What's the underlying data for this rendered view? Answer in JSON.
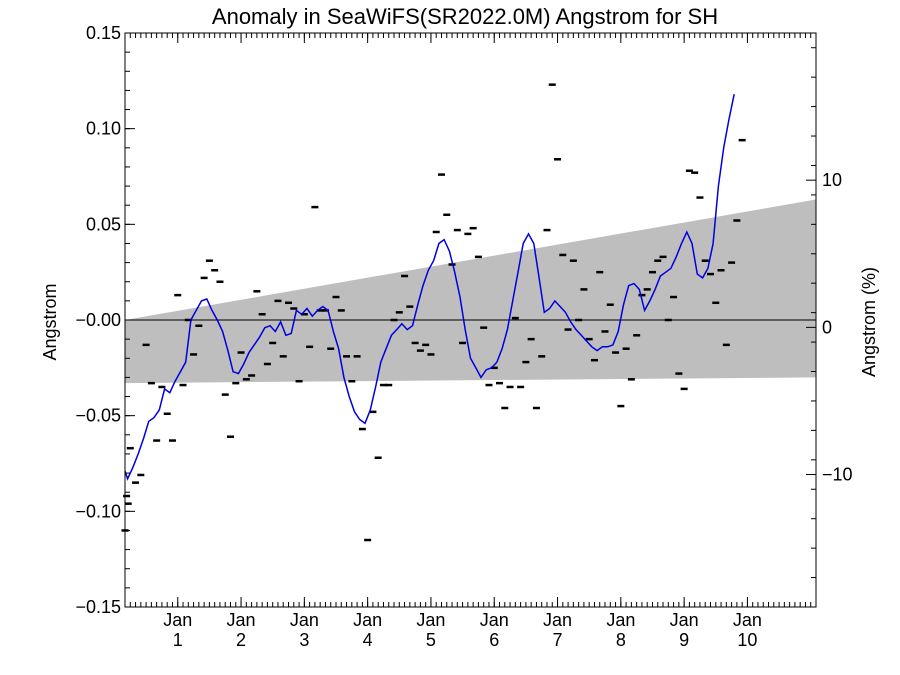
{
  "chart_data": {
    "type": "line",
    "title": "Anomaly in SeaWiFS(SR2022.0M) Angstrom for SH",
    "ylabel": "Angstrom",
    "ylabel_right": "Angstrom (%)",
    "ylim": [
      -0.15,
      0.15
    ],
    "xlim": [
      0,
      131
    ],
    "ylim_right": [
      -19,
      20
    ],
    "y_ticks": [
      {
        "v": -0.15,
        "label": "−0.15"
      },
      {
        "v": -0.1,
        "label": "−0.10"
      },
      {
        "v": -0.05,
        "label": "−0.05"
      },
      {
        "v": 0.0,
        "label": "−0.00"
      },
      {
        "v": 0.05,
        "label": "0.05"
      },
      {
        "v": 0.1,
        "label": "0.10"
      },
      {
        "v": 0.15,
        "label": "0.15"
      }
    ],
    "y_ticks_right": [
      {
        "v": -10,
        "label": "−10"
      },
      {
        "v": 0,
        "label": "0"
      },
      {
        "v": 10,
        "label": "10"
      }
    ],
    "x_ticks": [
      {
        "x": 10,
        "month": "Jan",
        "year": "1"
      },
      {
        "x": 22,
        "month": "Jan",
        "year": "2"
      },
      {
        "x": 34,
        "month": "Jan",
        "year": "3"
      },
      {
        "x": 46,
        "month": "Jan",
        "year": "4"
      },
      {
        "x": 58,
        "month": "Jan",
        "year": "5"
      },
      {
        "x": 70,
        "month": "Jan",
        "year": "6"
      },
      {
        "x": 82,
        "month": "Jan",
        "year": "7"
      },
      {
        "x": 94,
        "month": "Jan",
        "year": "8"
      },
      {
        "x": 106,
        "month": "Jan",
        "year": "9"
      },
      {
        "x": 118,
        "month": "Jan",
        "year": "10"
      }
    ],
    "band": {
      "upper": [
        [
          0,
          0.0
        ],
        [
          131,
          0.063
        ]
      ],
      "lower": [
        [
          0,
          -0.033
        ],
        [
          131,
          -0.03
        ]
      ],
      "color": "#bebebe"
    },
    "zero_line": 0,
    "series": [
      {
        "kind": "monthly",
        "color": "#000000",
        "points": [
          [
            0,
            -0.11
          ],
          [
            0.3,
            -0.092
          ],
          [
            0.6,
            -0.096
          ],
          [
            1,
            -0.067
          ],
          [
            2,
            -0.085
          ],
          [
            3,
            -0.081
          ],
          [
            4,
            -0.013
          ],
          [
            5,
            -0.033
          ],
          [
            6,
            -0.063
          ],
          [
            7,
            -0.035
          ],
          [
            8,
            -0.049
          ],
          [
            9,
            -0.063
          ],
          [
            10,
            0.013
          ],
          [
            11,
            -0.034
          ],
          [
            12,
            0.0
          ],
          [
            13,
            -0.018
          ],
          [
            14,
            -0.003
          ],
          [
            15,
            0.022
          ],
          [
            16,
            0.031
          ],
          [
            17,
            0.026
          ],
          [
            18,
            0.02
          ],
          [
            19,
            -0.039
          ],
          [
            20,
            -0.061
          ],
          [
            21,
            -0.033
          ],
          [
            22,
            -0.017
          ],
          [
            23,
            -0.031
          ],
          [
            24,
            -0.029
          ],
          [
            25,
            0.015
          ],
          [
            26,
            0.003
          ],
          [
            27,
            -0.023
          ],
          [
            28,
            -0.012
          ],
          [
            29,
            0.01
          ],
          [
            30,
            -0.019
          ],
          [
            31,
            0.009
          ],
          [
            32,
            0.006
          ],
          [
            33,
            -0.032
          ],
          [
            34,
            0.003
          ],
          [
            35,
            -0.014
          ],
          [
            36,
            0.059
          ],
          [
            37,
            0.005
          ],
          [
            38,
            0.005
          ],
          [
            39,
            -0.015
          ],
          [
            40,
            0.012
          ],
          [
            41,
            0.005
          ],
          [
            42,
            -0.019
          ],
          [
            43,
            -0.032
          ],
          [
            44,
            -0.019
          ],
          [
            45,
            -0.057
          ],
          [
            46,
            -0.115
          ],
          [
            47,
            -0.048
          ],
          [
            48,
            -0.072
          ],
          [
            49,
            -0.034
          ],
          [
            50,
            -0.034
          ],
          [
            51,
            0.0
          ],
          [
            52,
            0.004
          ],
          [
            53,
            0.023
          ],
          [
            54,
            0.007
          ],
          [
            55,
            -0.012
          ],
          [
            56,
            -0.016
          ],
          [
            57,
            -0.013
          ],
          [
            58,
            -0.018
          ],
          [
            59,
            0.046
          ],
          [
            60,
            0.076
          ],
          [
            61,
            0.055
          ],
          [
            62,
            0.029
          ],
          [
            63,
            0.047
          ],
          [
            64,
            -0.012
          ],
          [
            65,
            0.045
          ],
          [
            66,
            0.048
          ],
          [
            67,
            0.033
          ],
          [
            68,
            -0.004
          ],
          [
            69,
            -0.034
          ],
          [
            70,
            -0.025
          ],
          [
            71,
            -0.033
          ],
          [
            72,
            -0.046
          ],
          [
            73,
            -0.035
          ],
          [
            74,
            0.001
          ],
          [
            75,
            -0.035
          ],
          [
            76,
            -0.022
          ],
          [
            77,
            -0.01
          ],
          [
            78,
            -0.046
          ],
          [
            79,
            -0.019
          ],
          [
            80,
            0.047
          ],
          [
            81,
            0.123
          ],
          [
            82,
            0.084
          ],
          [
            83,
            0.034
          ],
          [
            84,
            -0.005
          ],
          [
            85,
            0.031
          ],
          [
            86,
            0.0
          ],
          [
            87,
            0.016
          ],
          [
            88,
            -0.01
          ],
          [
            89,
            -0.021
          ],
          [
            90,
            0.025
          ],
          [
            91,
            -0.006
          ],
          [
            92,
            0.008
          ],
          [
            93,
            -0.017
          ],
          [
            94,
            -0.045
          ],
          [
            95,
            -0.015
          ],
          [
            96,
            -0.031
          ],
          [
            97,
            -0.008
          ],
          [
            98,
            0.013
          ],
          [
            99,
            0.016
          ],
          [
            100,
            0.025
          ],
          [
            101,
            0.031
          ],
          [
            102,
            0.033
          ],
          [
            103,
            0.0
          ],
          [
            104,
            0.012
          ],
          [
            105,
            -0.028
          ],
          [
            106,
            -0.036
          ],
          [
            107,
            0.078
          ],
          [
            108,
            0.077
          ],
          [
            109,
            0.064
          ],
          [
            110,
            0.031
          ],
          [
            111,
            0.024
          ],
          [
            112,
            0.009
          ],
          [
            113,
            0.026
          ],
          [
            114,
            -0.013
          ],
          [
            115,
            0.03
          ],
          [
            116,
            0.052
          ],
          [
            117,
            0.094
          ]
        ]
      },
      {
        "kind": "smoothed",
        "color": "#0000e0",
        "points": [
          [
            0,
            -0.079
          ],
          [
            0.5,
            -0.083
          ],
          [
            1.5,
            -0.077
          ],
          [
            2.5,
            -0.07
          ],
          [
            3.5,
            -0.062
          ],
          [
            4.5,
            -0.053
          ],
          [
            5.5,
            -0.051
          ],
          [
            6.5,
            -0.047
          ],
          [
            7.5,
            -0.036
          ],
          [
            8.5,
            -0.038
          ],
          [
            9.5,
            -0.032
          ],
          [
            10.5,
            -0.027
          ],
          [
            11.5,
            -0.022
          ],
          [
            12.5,
            0.0
          ],
          [
            13.5,
            0.005
          ],
          [
            14.5,
            0.01
          ],
          [
            15.5,
            0.011
          ],
          [
            16.5,
            0.005
          ],
          [
            17.5,
            0.0
          ],
          [
            18.5,
            -0.006
          ],
          [
            19.5,
            -0.016
          ],
          [
            20.5,
            -0.027
          ],
          [
            21.5,
            -0.028
          ],
          [
            22.5,
            -0.023
          ],
          [
            23.5,
            -0.017
          ],
          [
            24.5,
            -0.013
          ],
          [
            25.5,
            -0.009
          ],
          [
            26.5,
            -0.004
          ],
          [
            27.5,
            -0.003
          ],
          [
            28.5,
            -0.006
          ],
          [
            29.5,
            -0.001
          ],
          [
            30.5,
            -0.008
          ],
          [
            31.5,
            -0.007
          ],
          [
            32.5,
            0.005
          ],
          [
            33.5,
            0.003
          ],
          [
            34.5,
            0.006
          ],
          [
            35.5,
            0.002
          ],
          [
            36.5,
            0.005
          ],
          [
            37.5,
            0.007
          ],
          [
            38.5,
            0.005
          ],
          [
            39.5,
            -0.006
          ],
          [
            40.5,
            -0.015
          ],
          [
            41.5,
            -0.03
          ],
          [
            42.5,
            -0.04
          ],
          [
            43.5,
            -0.048
          ],
          [
            44.5,
            -0.052
          ],
          [
            45.5,
            -0.054
          ],
          [
            46.5,
            -0.047
          ],
          [
            47.5,
            -0.035
          ],
          [
            48.5,
            -0.022
          ],
          [
            49.5,
            -0.015
          ],
          [
            50.5,
            -0.008
          ],
          [
            51.5,
            -0.005
          ],
          [
            52.5,
            -0.002
          ],
          [
            53.5,
            -0.005
          ],
          [
            54.5,
            -0.003
          ],
          [
            55.5,
            0.008
          ],
          [
            56.5,
            0.018
          ],
          [
            57.5,
            0.026
          ],
          [
            58.5,
            0.031
          ],
          [
            59.5,
            0.04
          ],
          [
            60.5,
            0.042
          ],
          [
            61.5,
            0.036
          ],
          [
            62.5,
            0.025
          ],
          [
            63.5,
            0.012
          ],
          [
            64.5,
            -0.005
          ],
          [
            65.5,
            -0.02
          ],
          [
            66.5,
            -0.025
          ],
          [
            67.5,
            -0.03
          ],
          [
            68.5,
            -0.026
          ],
          [
            69.5,
            -0.025
          ],
          [
            70.5,
            -0.022
          ],
          [
            71.5,
            -0.015
          ],
          [
            72.5,
            -0.005
          ],
          [
            73.5,
            0.01
          ],
          [
            74.5,
            0.025
          ],
          [
            75.5,
            0.04
          ],
          [
            76.5,
            0.045
          ],
          [
            77.5,
            0.04
          ],
          [
            78.5,
            0.022
          ],
          [
            79.5,
            0.004
          ],
          [
            80.5,
            0.006
          ],
          [
            81.5,
            0.01
          ],
          [
            82.5,
            0.007
          ],
          [
            83.5,
            0.004
          ],
          [
            84.5,
            -0.001
          ],
          [
            85.5,
            -0.005
          ],
          [
            86.5,
            -0.008
          ],
          [
            87.5,
            -0.011
          ],
          [
            88.5,
            -0.014
          ],
          [
            89.5,
            -0.016
          ],
          [
            90.5,
            -0.014
          ],
          [
            91.5,
            -0.014
          ],
          [
            92.5,
            -0.013
          ],
          [
            93.5,
            -0.006
          ],
          [
            94.5,
            0.008
          ],
          [
            95.5,
            0.018
          ],
          [
            96.5,
            0.019
          ],
          [
            97.5,
            0.016
          ],
          [
            98.5,
            0.005
          ],
          [
            99.5,
            0.01
          ],
          [
            100.5,
            0.016
          ],
          [
            101.5,
            0.023
          ],
          [
            102.5,
            0.025
          ],
          [
            103.5,
            0.027
          ],
          [
            104.5,
            0.033
          ],
          [
            105.5,
            0.04
          ],
          [
            106.5,
            0.046
          ],
          [
            107.5,
            0.04
          ],
          [
            108.5,
            0.024
          ],
          [
            109.5,
            0.022
          ],
          [
            110.5,
            0.027
          ],
          [
            111.5,
            0.04
          ],
          [
            112.5,
            0.07
          ],
          [
            113.5,
            0.09
          ],
          [
            114.5,
            0.105
          ],
          [
            115.5,
            0.118
          ]
        ]
      }
    ]
  }
}
